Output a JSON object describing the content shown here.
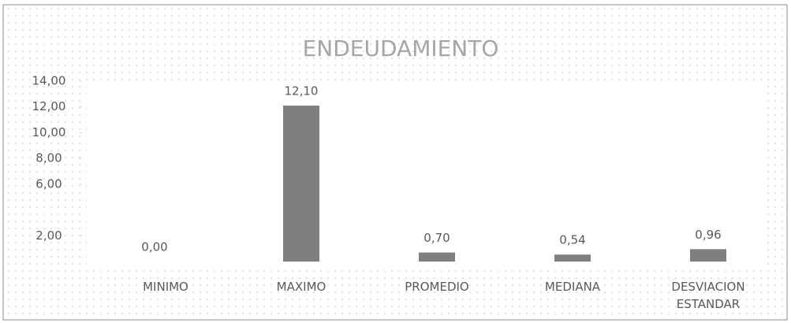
{
  "chart_data": {
    "type": "bar",
    "title": "ENDEUDAMIENTO",
    "categories": [
      "MINIMO",
      "MAXIMO",
      "PROMEDIO",
      "MEDIANA",
      "DESVIACION ESTANDAR"
    ],
    "values": [
      0,
      12.1,
      0.7,
      0.54,
      0.96
    ],
    "value_labels": [
      "0,00",
      "12,10",
      "0,70",
      "0,54",
      "0,96"
    ],
    "color": "#7f7f7f",
    "ylim": [
      0,
      14
    ],
    "yticks": [
      {
        "value": 2,
        "label": "2,00"
      },
      {
        "value": 6,
        "label": "6,00"
      },
      {
        "value": 8,
        "label": "8,00"
      },
      {
        "value": 10,
        "label": "10,00"
      },
      {
        "value": 12,
        "label": "12,00"
      },
      {
        "value": 14,
        "label": "14,00"
      }
    ]
  }
}
